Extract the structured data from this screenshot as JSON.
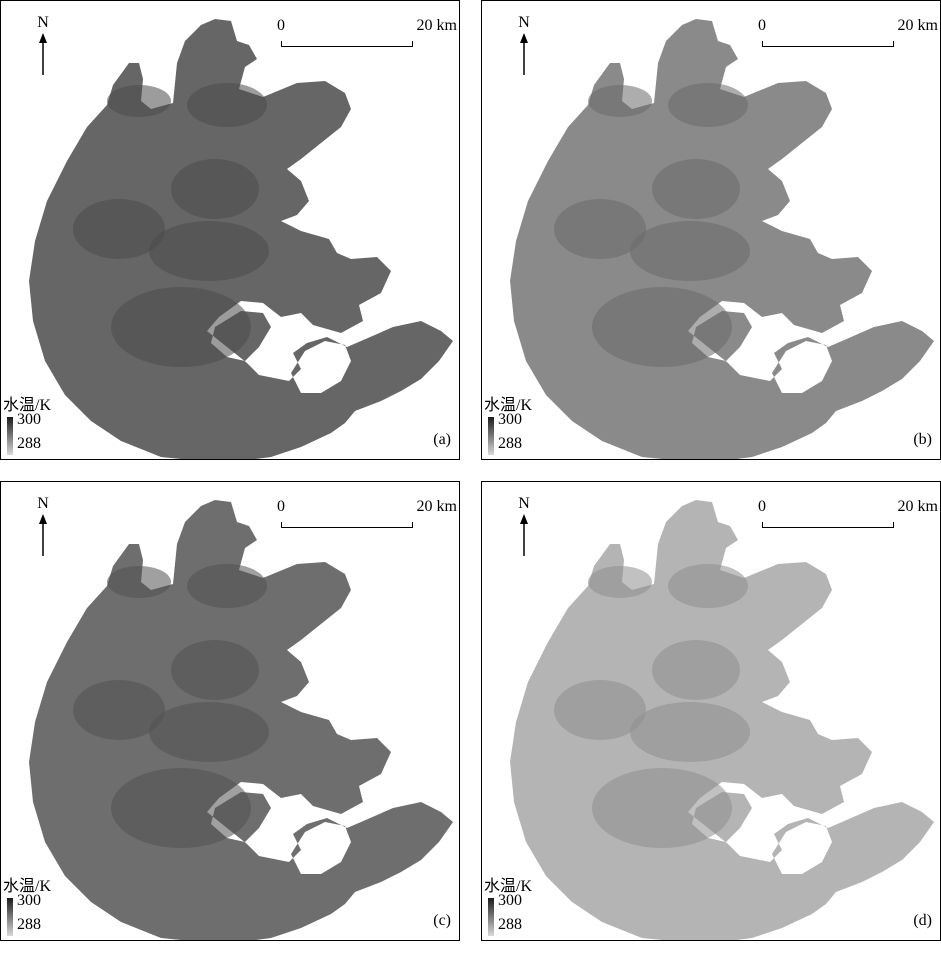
{
  "panels": [
    {
      "id": "a",
      "label": "(a)",
      "tone": "#666666",
      "dark": "#4a4a4a"
    },
    {
      "id": "b",
      "label": "(b)",
      "tone": "#8a8a8a",
      "dark": "#6a6a6a"
    },
    {
      "id": "c",
      "label": "(c)",
      "tone": "#6e6e6e",
      "dark": "#525252"
    },
    {
      "id": "d",
      "label": "(d)",
      "tone": "#b4b4b4",
      "dark": "#8e8e8e"
    }
  ],
  "north_label": "N",
  "scale_bar": {
    "start": "0",
    "end": "20 km"
  },
  "legend": {
    "title": "水温/K",
    "max": "300",
    "min": "288"
  }
}
